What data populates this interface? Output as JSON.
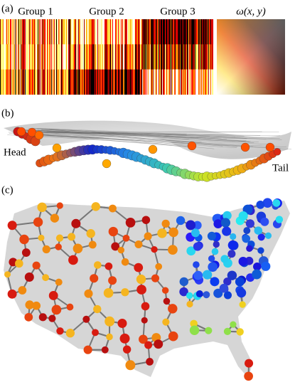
{
  "panel_a": {
    "label": "(a)",
    "titles": [
      "Group 1",
      "Group 2",
      "Group 3",
      "ω(x, y)"
    ]
  },
  "panel_b": {
    "label": "(b)",
    "head": "Head",
    "tail": "Tail"
  },
  "panel_c": {
    "label": "(c)"
  }
}
